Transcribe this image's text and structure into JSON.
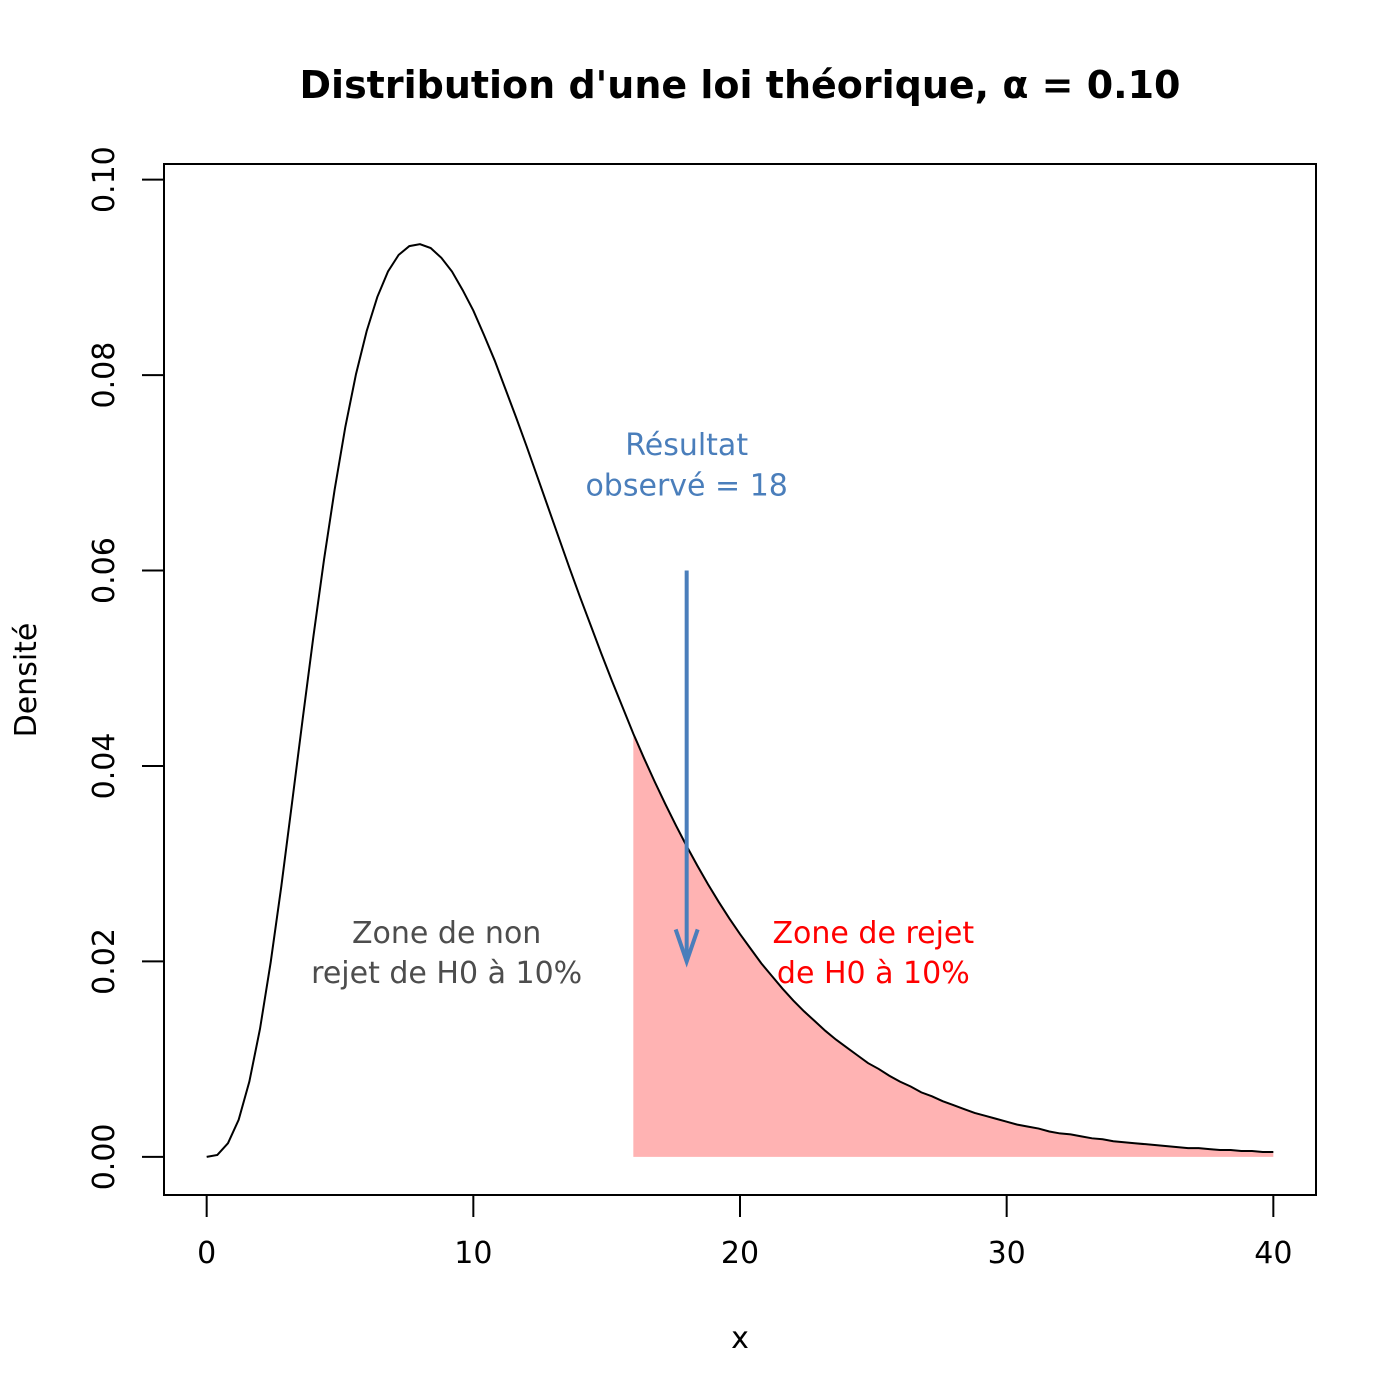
{
  "chart_data": {
    "type": "area",
    "title": "Distribution d'une loi théorique, α = 0.10",
    "xlabel": "x",
    "ylabel": "Densité",
    "xlim": [
      -1.6,
      41.6
    ],
    "ylim": [
      -0.0039,
      0.1016
    ],
    "grid": false,
    "legend": "none",
    "x_ticks": [
      0,
      10,
      20,
      30,
      40
    ],
    "y_ticks": [
      0.0,
      0.02,
      0.04,
      0.06,
      0.08,
      0.1
    ],
    "x_tick_labels": [
      "0",
      "10",
      "20",
      "30",
      "40"
    ],
    "y_tick_labels": [
      "0.00",
      "0.02",
      "0.04",
      "0.06",
      "0.08",
      "0.10"
    ],
    "series": [
      {
        "x": [
          0,
          0.4,
          0.8,
          1.2,
          1.6,
          2,
          2.4,
          2.8,
          3.2,
          3.6,
          4,
          4.4,
          4.8,
          5.2,
          5.6,
          6,
          6.4,
          6.8,
          7.2,
          7.6,
          8,
          8.4,
          8.8,
          9.2,
          9.6,
          10,
          10.4,
          10.8,
          11.2,
          11.6,
          12,
          12.4,
          12.8,
          13.2,
          13.6,
          14,
          14.4,
          14.8,
          15.2,
          15.6,
          16,
          16.4,
          16.8,
          17.2,
          17.6,
          18,
          18.4,
          18.8,
          19.2,
          19.6,
          20,
          20.4,
          20.8,
          21.2,
          21.6,
          22,
          22.4,
          22.8,
          23.2,
          23.6,
          24,
          24.4,
          24.8,
          25.2,
          25.6,
          26,
          26.4,
          26.8,
          27.2,
          27.6,
          28,
          28.4,
          28.8,
          29.2,
          29.6,
          30,
          30.4,
          30.8,
          31.2,
          31.6,
          32,
          32.4,
          32.8,
          33.2,
          33.6,
          34,
          34.4,
          34.8,
          35.2,
          35.6,
          36,
          36.4,
          36.8,
          37.2,
          37.6,
          38,
          38.4,
          38.8,
          39.2,
          39.6,
          40
        ],
        "y": [
          0,
          0.0002,
          0.0014,
          0.0038,
          0.0077,
          0.0131,
          0.0199,
          0.0277,
          0.0362,
          0.0448,
          0.0532,
          0.0611,
          0.0683,
          0.0747,
          0.0801,
          0.0845,
          0.088,
          0.0906,
          0.0923,
          0.0932,
          0.0934,
          0.093,
          0.092,
          0.0906,
          0.0887,
          0.0866,
          0.0841,
          0.0815,
          0.0786,
          0.0757,
          0.0727,
          0.0696,
          0.0665,
          0.0634,
          0.0603,
          0.0573,
          0.0544,
          0.0515,
          0.0487,
          0.046,
          0.0433,
          0.0408,
          0.0384,
          0.0361,
          0.0339,
          0.0318,
          0.0298,
          0.0279,
          0.0261,
          0.0244,
          0.0228,
          0.0213,
          0.0198,
          0.0185,
          0.0172,
          0.016,
          0.0149,
          0.0139,
          0.0129,
          0.012,
          0.0112,
          0.0104,
          0.0096,
          0.009,
          0.0083,
          0.0077,
          0.0072,
          0.0066,
          0.0062,
          0.0057,
          0.0053,
          0.0049,
          0.0045,
          0.0042,
          0.0039,
          0.0036,
          0.0033,
          0.0031,
          0.0029,
          0.0026,
          0.0024,
          0.0023,
          0.0021,
          0.0019,
          0.0018,
          0.0016,
          0.0015,
          0.0014,
          0.0013,
          0.0012,
          0.0011,
          0.001,
          0.0009,
          0.0009,
          0.0008,
          0.0007,
          0.0007,
          0.0006,
          0.0006,
          0.0005,
          0.0005
        ],
        "color": "#000000"
      }
    ],
    "rejection_region": {
      "x_start": 16,
      "x_end": 40,
      "color": "#ffb3b3"
    },
    "observed": {
      "value": 18,
      "arrow_from_y": 0.06,
      "arrow_to_y": 0.02,
      "color": "#4a7ebb"
    },
    "annotations": [
      {
        "lines": [
          "Résultat",
          "observé = 18"
        ],
        "x": 18,
        "y": [
          0.0718,
          0.0677
        ],
        "color": "#4a7ebb"
      },
      {
        "lines": [
          "Zone de non",
          "rejet de H0 à 10%"
        ],
        "x": 9,
        "y": [
          0.0219,
          0.0178
        ],
        "color": "#4d4d4d"
      },
      {
        "lines": [
          "Zone de rejet",
          "de H0 à 10%"
        ],
        "x": 25,
        "y": [
          0.0219,
          0.0178
        ],
        "color": "#ff0000"
      }
    ]
  }
}
